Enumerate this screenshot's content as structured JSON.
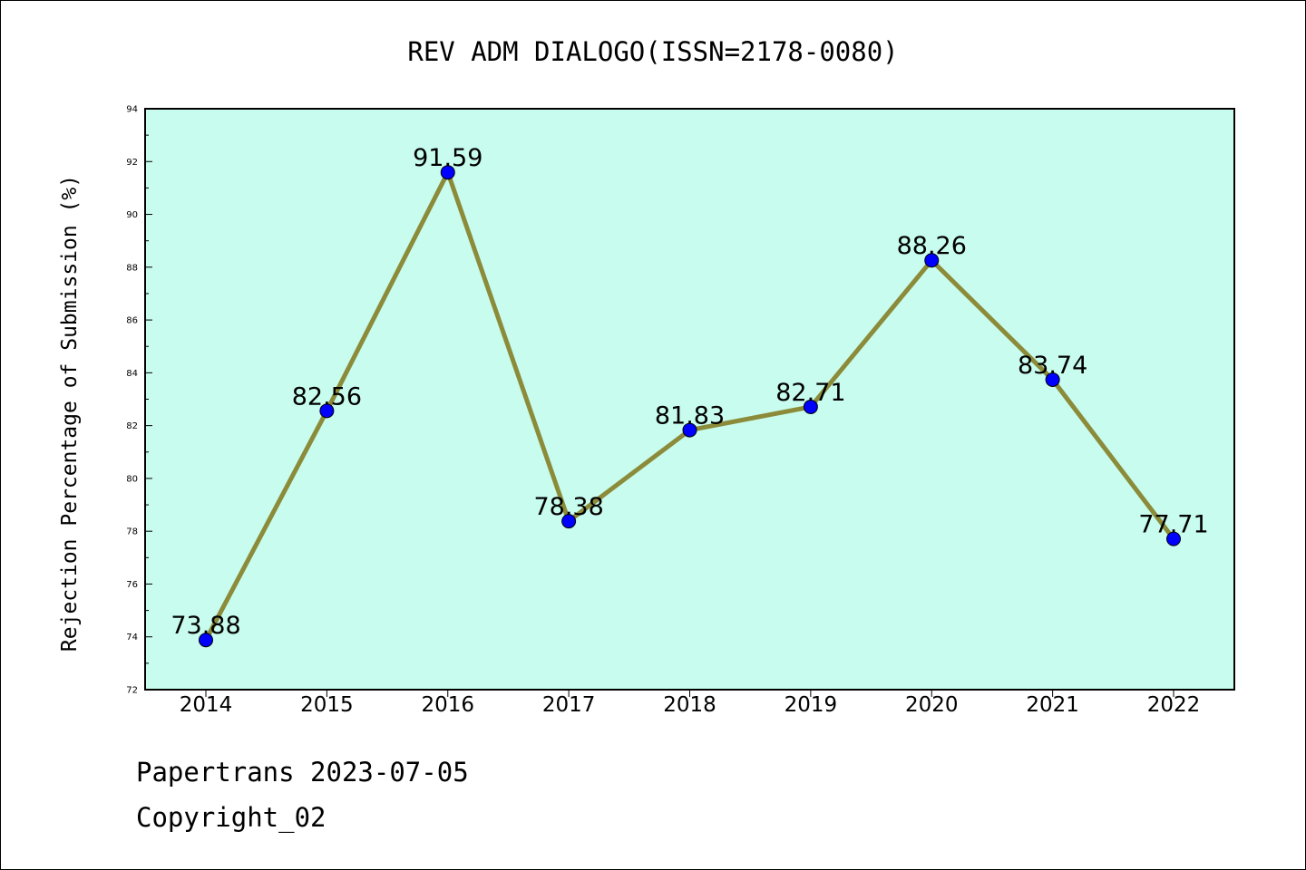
{
  "chart_data": {
    "type": "line",
    "title": "REV ADM DIALOGO(ISSN=2178-0080)",
    "xlabel": "",
    "ylabel": "Rejection Percentage of Submission (%)",
    "categories": [
      "2014",
      "2015",
      "2016",
      "2017",
      "2018",
      "2019",
      "2020",
      "2021",
      "2022"
    ],
    "series": [
      {
        "values": [
          73.88,
          82.56,
          91.59,
          78.38,
          81.83,
          82.71,
          88.26,
          83.74,
          77.71
        ],
        "labels": [
          "73.88",
          "82.56",
          "91.59",
          "78.38",
          "81.83",
          "82.71",
          "88.26",
          "83.74",
          "77.71"
        ]
      }
    ],
    "ylim": [
      72,
      94
    ],
    "yticks": [
      "72",
      "74",
      "76",
      "78",
      "80",
      "82",
      "84",
      "86",
      "88",
      "90",
      "92",
      "94"
    ],
    "grid": false,
    "colors": {
      "plot_background": "#c8fcee",
      "line": "#8b8b3a",
      "marker": "#0000ff"
    }
  },
  "footer": {
    "line1": "Papertrans 2023-07-05",
    "line2": "Copyright_02"
  }
}
